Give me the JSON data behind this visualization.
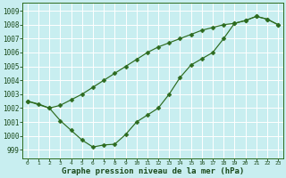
{
  "title": "Graphe pression niveau de la mer (hPa)",
  "bg_color": "#c8eef0",
  "grid_color": "#ffffff",
  "line_color": "#2d6b1e",
  "xlim": [
    -0.5,
    23.5
  ],
  "ylim": [
    998.4,
    1009.6
  ],
  "xticks": [
    0,
    1,
    2,
    3,
    4,
    5,
    6,
    7,
    8,
    9,
    10,
    11,
    12,
    13,
    14,
    15,
    16,
    17,
    18,
    19,
    20,
    21,
    22,
    23
  ],
  "yticks": [
    999,
    1000,
    1001,
    1002,
    1003,
    1004,
    1005,
    1006,
    1007,
    1008,
    1009
  ],
  "series1_x": [
    0,
    1,
    2,
    3,
    4,
    5,
    6,
    7,
    8,
    9,
    10,
    11,
    12,
    13,
    14,
    15,
    16,
    17,
    18,
    19,
    20,
    21,
    22,
    23
  ],
  "series1_y": [
    1002.5,
    1002.3,
    1002.0,
    1001.1,
    1000.4,
    999.7,
    999.2,
    999.35,
    999.4,
    1000.1,
    1001.0,
    1001.5,
    1002.0,
    1003.0,
    1004.2,
    1005.1,
    1005.55,
    1006.0,
    1007.0,
    1008.1,
    1008.3,
    1008.6,
    1008.4,
    1008.0
  ],
  "series2_x": [
    0,
    2,
    3,
    4,
    5,
    6,
    7,
    8,
    9,
    10,
    11,
    12,
    13,
    14,
    15,
    16,
    17,
    18,
    19,
    20,
    21,
    22,
    23
  ],
  "series2_y": [
    1002.5,
    1002.0,
    1002.2,
    1002.6,
    1003.0,
    1003.5,
    1004.0,
    1004.5,
    1005.0,
    1005.5,
    1006.0,
    1006.4,
    1006.7,
    1007.0,
    1007.3,
    1007.6,
    1007.8,
    1008.0,
    1008.1,
    1008.3,
    1008.6,
    1008.4,
    1008.0
  ],
  "ylabel_fontsize": 5.5,
  "xlabel_fontsize": 4.5,
  "title_fontsize": 6.5
}
